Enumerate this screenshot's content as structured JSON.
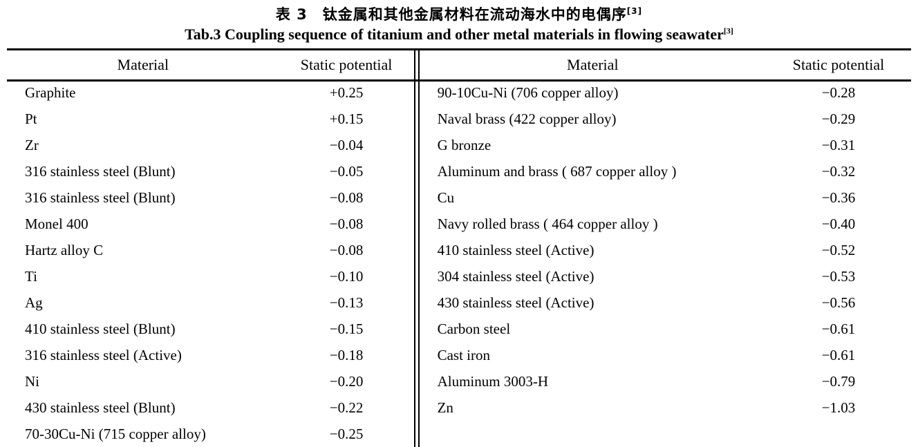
{
  "title": {
    "zh": "表 3　钛金属和其他金属材料在流动海水中的电偶序",
    "en": "Tab.3 Coupling sequence of titanium and other metal materials in flowing seawater",
    "ref": "[3]"
  },
  "table": {
    "headers": {
      "material": "Material",
      "potential": "Static potential"
    },
    "left_rows": [
      {
        "material": "Graphite",
        "potential": "+0.25"
      },
      {
        "material": "Pt",
        "potential": "+0.15"
      },
      {
        "material": "Zr",
        "potential": "−0.04"
      },
      {
        "material": "316 stainless steel (Blunt)",
        "potential": "−0.05"
      },
      {
        "material": "316 stainless steel (Blunt)",
        "potential": "−0.08"
      },
      {
        "material": "Monel 400",
        "potential": "−0.08"
      },
      {
        "material": "Hartz alloy C",
        "potential": "−0.08"
      },
      {
        "material": "Ti",
        "potential": "−0.10"
      },
      {
        "material": "Ag",
        "potential": "−0.13"
      },
      {
        "material": "410 stainless steel (Blunt)",
        "potential": "−0.15"
      },
      {
        "material": "316 stainless steel (Active)",
        "potential": "−0.18"
      },
      {
        "material": "Ni",
        "potential": "−0.20"
      },
      {
        "material": "430 stainless steel (Blunt)",
        "potential": "−0.22"
      },
      {
        "material": "70-30Cu-Ni (715 copper alloy)",
        "potential": "−0.25"
      }
    ],
    "right_rows": [
      {
        "material": "90-10Cu-Ni (706 copper alloy)",
        "potential": "−0.28"
      },
      {
        "material": "Naval brass (422 copper alloy)",
        "potential": "−0.29"
      },
      {
        "material": "G bronze",
        "potential": "−0.31"
      },
      {
        "material": "Aluminum and brass ( 687 copper alloy )",
        "potential": "−0.32"
      },
      {
        "material": "Cu",
        "potential": "−0.36"
      },
      {
        "material": "Navy rolled brass ( 464 copper alloy )",
        "potential": "−0.40"
      },
      {
        "material": "410 stainless steel (Active)",
        "potential": "−0.52"
      },
      {
        "material": "304 stainless steel (Active)",
        "potential": "−0.53"
      },
      {
        "material": "430 stainless steel (Active)",
        "potential": "−0.56"
      },
      {
        "material": "Carbon steel",
        "potential": "−0.61"
      },
      {
        "material": "Cast iron",
        "potential": "−0.61"
      },
      {
        "material": "Aluminum 3003-H",
        "potential": "−0.79"
      },
      {
        "material": "Zn",
        "potential": "−1.03"
      }
    ]
  }
}
